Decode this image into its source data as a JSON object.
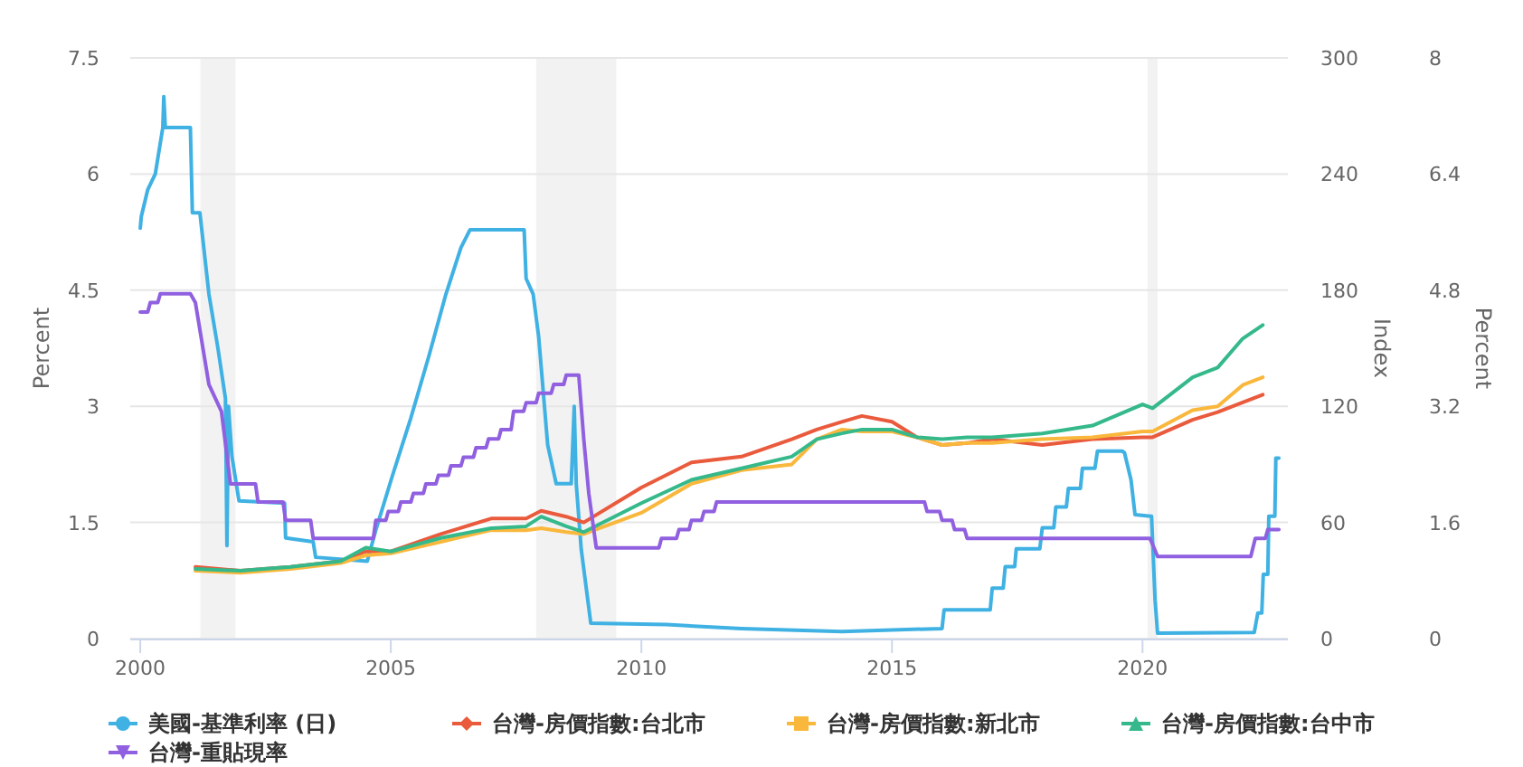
{
  "chart_data": {
    "type": "line",
    "xlim": [
      1999.8,
      2022.9
    ],
    "xticks": [
      2000,
      2005,
      2010,
      2015,
      2020
    ],
    "ylabel": "Percent",
    "ylim": [
      0,
      7.5
    ],
    "yticks": [
      0,
      1.5,
      3,
      4.5,
      6,
      7.5
    ],
    "y2label": "Index",
    "y2lim": [
      0,
      300
    ],
    "y2ticks": [
      0,
      60,
      120,
      180,
      240,
      300
    ],
    "y3label": "Percent",
    "y3lim": [
      0,
      8
    ],
    "y3ticks": [
      0,
      1.6,
      3.2,
      4.8,
      6.4,
      8
    ],
    "grid": "y",
    "legend": "bottom",
    "bands": [
      {
        "axis": "x",
        "from": 2001.2,
        "to": 2001.9,
        "color": "#f2f2f2"
      },
      {
        "axis": "x",
        "from": 2007.9,
        "to": 2009.5,
        "color": "#f2f2f2"
      },
      {
        "axis": "x",
        "from": 2020.1,
        "to": 2020.3,
        "color": "#f2f2f2"
      }
    ],
    "series": [
      {
        "name": "美國-基準利率 (日)",
        "color": "#3fb1e3",
        "x": [
          2000.0,
          2000.02,
          2000.15,
          2000.3,
          2000.45,
          2000.47,
          2000.5,
          2001.0,
          2001.04,
          2001.19,
          2001.37,
          2001.55,
          2001.7,
          2001.73,
          2001.76,
          2001.83,
          2001.97,
          2002.88,
          2002.9,
          2003.45,
          2003.5,
          2004.53,
          2004.7,
          2005.03,
          2005.4,
          2005.76,
          2006.1,
          2006.4,
          2006.58,
          2007.66,
          2007.7,
          2007.84,
          2007.95,
          2008.13,
          2008.3,
          2008.6,
          2008.66,
          2008.7,
          2008.8,
          2008.99,
          2010.5,
          2012.0,
          2014.0,
          2016.0,
          2016.04,
          2016.96,
          2017.0,
          2017.22,
          2017.26,
          2017.45,
          2017.48,
          2017.95,
          2018.0,
          2018.23,
          2018.27,
          2018.48,
          2018.52,
          2018.76,
          2018.8,
          2019.05,
          2019.1,
          2019.6,
          2019.64,
          2019.77,
          2019.85,
          2020.18,
          2020.25,
          2020.3,
          2022.23,
          2022.3,
          2022.38,
          2022.41,
          2022.5,
          2022.52,
          2022.64,
          2022.66,
          2022.72
        ],
        "values": [
          5.3,
          5.45,
          5.8,
          6.0,
          6.6,
          7.0,
          6.6,
          6.6,
          5.5,
          5.5,
          4.45,
          3.75,
          3.1,
          1.2,
          3.0,
          2.35,
          1.78,
          1.75,
          1.3,
          1.25,
          1.05,
          1.0,
          1.4,
          2.1,
          2.85,
          3.65,
          4.45,
          5.05,
          5.28,
          5.28,
          4.65,
          4.45,
          3.9,
          2.5,
          2.0,
          2.0,
          3.0,
          2.0,
          1.15,
          0.2,
          0.18,
          0.13,
          0.09,
          0.13,
          0.37,
          0.37,
          0.65,
          0.65,
          0.93,
          0.93,
          1.16,
          1.16,
          1.43,
          1.43,
          1.7,
          1.7,
          1.94,
          1.94,
          2.2,
          2.2,
          2.42,
          2.42,
          2.4,
          2.05,
          1.6,
          1.58,
          0.5,
          0.07,
          0.08,
          0.33,
          0.33,
          0.83,
          0.83,
          1.58,
          1.58,
          2.33,
          2.33
        ]
      },
      {
        "name": "台灣-房價指數:台北市",
        "color": "#ea5a3c",
        "axis": "y2",
        "x": [
          2001.1,
          2002.0,
          2003.0,
          2004.0,
          2004.5,
          2005.0,
          2006.0,
          2007.0,
          2007.7,
          2008.0,
          2008.5,
          2008.85,
          2010.0,
          2011.0,
          2012.0,
          2013.0,
          2013.5,
          2014.0,
          2014.4,
          2015.0,
          2015.5,
          2016.0,
          2016.5,
          2017.0,
          2018.0,
          2019.0,
          2020.0,
          2020.2,
          2021.0,
          2021.5,
          2022.0,
          2022.4
        ],
        "values": [
          37,
          35,
          37,
          40,
          45,
          45,
          54,
          62,
          62,
          66,
          63,
          60,
          78,
          91,
          94,
          103,
          108,
          112,
          115,
          112,
          104,
          100,
          101,
          103,
          100,
          103,
          104,
          104,
          113,
          117,
          122,
          126
        ]
      },
      {
        "name": "台灣-房價指數:新北市",
        "color": "#f9b73c",
        "axis": "y2",
        "x": [
          2001.1,
          2002.0,
          2003.0,
          2004.0,
          2004.5,
          2005.0,
          2006.0,
          2007.0,
          2007.7,
          2008.0,
          2008.5,
          2008.85,
          2010.0,
          2011.0,
          2012.0,
          2013.0,
          2013.5,
          2014.0,
          2014.4,
          2015.0,
          2015.5,
          2016.0,
          2016.5,
          2017.0,
          2018.0,
          2019.0,
          2020.0,
          2020.2,
          2021.0,
          2021.5,
          2022.0,
          2022.4
        ],
        "values": [
          35,
          34,
          36,
          39,
          43,
          44,
          50,
          56,
          56,
          57,
          55,
          54,
          65,
          80,
          87,
          90,
          103,
          108,
          107,
          107,
          104,
          100,
          101,
          101,
          103,
          104,
          107,
          107,
          118,
          120,
          131,
          135
        ]
      },
      {
        "name": "台灣-房價指數:台中市",
        "color": "#35b98b",
        "axis": "y2",
        "x": [
          2001.1,
          2002.0,
          2003.0,
          2004.0,
          2004.5,
          2005.0,
          2006.0,
          2007.0,
          2007.7,
          2008.0,
          2008.5,
          2008.85,
          2010.0,
          2011.0,
          2012.0,
          2013.0,
          2013.5,
          2014.0,
          2014.4,
          2015.0,
          2015.5,
          2016.0,
          2016.5,
          2017.0,
          2018.0,
          2019.0,
          2020.0,
          2020.2,
          2021.0,
          2021.5,
          2022.0,
          2022.4
        ],
        "values": [
          36,
          35,
          37,
          40,
          47,
          45,
          52,
          57,
          58,
          63,
          58,
          55,
          70,
          82,
          88,
          94,
          103,
          106,
          108,
          108,
          104,
          103,
          104,
          104,
          106,
          110,
          121,
          119,
          135,
          140,
          155,
          162
        ]
      },
      {
        "name": "台灣-重貼現率",
        "color": "#9060e0",
        "axis": "y3",
        "x": [
          2000.0,
          2000.15,
          2000.2,
          2000.35,
          2000.4,
          2001.0,
          2001.1,
          2001.37,
          2001.62,
          2001.8,
          2002.3,
          2002.35,
          2002.85,
          2002.9,
          2003.4,
          2003.45,
          2004.65,
          2004.7,
          2004.9,
          2004.95,
          2005.15,
          2005.2,
          2005.4,
          2005.45,
          2005.65,
          2005.7,
          2005.9,
          2005.95,
          2006.15,
          2006.2,
          2006.4,
          2006.45,
          2006.65,
          2006.7,
          2006.9,
          2006.95,
          2007.15,
          2007.2,
          2007.4,
          2007.45,
          2007.65,
          2007.7,
          2007.9,
          2007.95,
          2008.2,
          2008.25,
          2008.45,
          2008.5,
          2008.75,
          2008.85,
          2008.95,
          2009.1,
          2010.35,
          2010.4,
          2010.7,
          2010.75,
          2010.95,
          2011.0,
          2011.2,
          2011.25,
          2011.45,
          2011.5,
          2015.65,
          2015.7,
          2015.95,
          2016.0,
          2016.2,
          2016.25,
          2016.45,
          2016.5,
          2020.15,
          2020.3,
          2022.16,
          2022.25,
          2022.45,
          2022.5,
          2022.72
        ],
        "values": [
          4.5,
          4.5,
          4.63,
          4.63,
          4.75,
          4.75,
          4.63,
          3.5,
          3.13,
          2.13,
          2.13,
          1.88,
          1.88,
          1.63,
          1.63,
          1.38,
          1.38,
          1.63,
          1.63,
          1.75,
          1.75,
          1.88,
          1.88,
          2.0,
          2.0,
          2.13,
          2.13,
          2.25,
          2.25,
          2.38,
          2.38,
          2.5,
          2.5,
          2.63,
          2.63,
          2.75,
          2.75,
          2.88,
          2.88,
          3.13,
          3.13,
          3.25,
          3.25,
          3.38,
          3.38,
          3.5,
          3.5,
          3.63,
          3.63,
          2.75,
          2.0,
          1.25,
          1.25,
          1.38,
          1.38,
          1.5,
          1.5,
          1.63,
          1.63,
          1.75,
          1.75,
          1.88,
          1.88,
          1.75,
          1.75,
          1.63,
          1.63,
          1.5,
          1.5,
          1.38,
          1.38,
          1.13,
          1.13,
          1.38,
          1.38,
          1.5,
          1.5
        ]
      }
    ]
  }
}
